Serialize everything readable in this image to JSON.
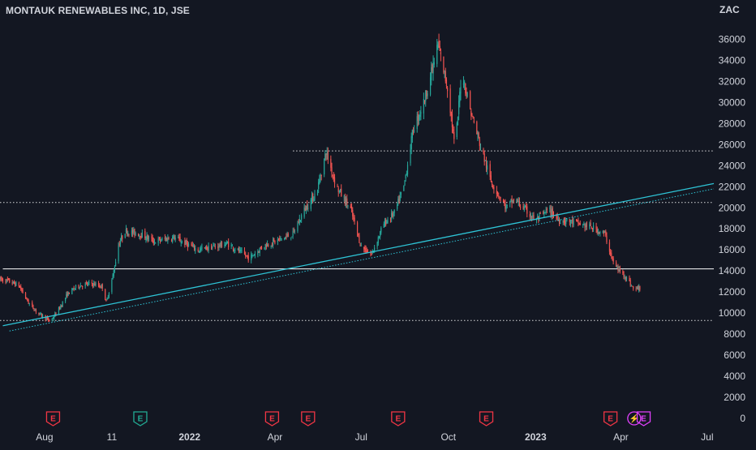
{
  "header": {
    "title": "MONTAUK RENEWABLES INC, 1D, JSE",
    "currency": "ZAC"
  },
  "colors": {
    "background": "#131722",
    "up_candle": "#26a69a",
    "down_candle": "#ef5350",
    "trendline": "#2ec4d6",
    "horizontal_line": "#ffffff",
    "earnings_red": "#f23645",
    "earnings_teal": "#22ab94",
    "dividend_magenta": "#e040fb",
    "axis_text": "#d1d4dc"
  },
  "chart_data": {
    "type": "candlestick",
    "ylim": [
      0,
      38000
    ],
    "y_ticks": [
      0,
      2000,
      4000,
      6000,
      8000,
      10000,
      12000,
      14000,
      16000,
      18000,
      20000,
      22000,
      24000,
      26000,
      28000,
      30000,
      32000,
      34000,
      36000,
      38000
    ],
    "y_tick_labels": [
      "0",
      "2000",
      "4000",
      "6000",
      "8000",
      "10000",
      "12000",
      "14000",
      "16000",
      "18000",
      "20000",
      "22000",
      "24000",
      "26000",
      "28000",
      "30000",
      "32000",
      "34000",
      "36000",
      "38000"
    ],
    "x_range": [
      "2021-06-15",
      "2023-07-08"
    ],
    "x_ticks": [
      {
        "label": "Aug",
        "date": "2021-08-01",
        "bold": false
      },
      {
        "label": "11",
        "date": "2021-10-11",
        "bold": false
      },
      {
        "label": "2022",
        "date": "2022-01-01",
        "bold": true
      },
      {
        "label": "Apr",
        "date": "2022-04-01",
        "bold": false
      },
      {
        "label": "Jul",
        "date": "2022-07-01",
        "bold": false
      },
      {
        "label": "Oct",
        "date": "2022-10-01",
        "bold": false
      },
      {
        "label": "2023",
        "date": "2023-01-01",
        "bold": true
      },
      {
        "label": "Apr",
        "date": "2023-04-01",
        "bold": false
      },
      {
        "label": "Jul",
        "date": "2023-07-01",
        "bold": false
      }
    ],
    "price_path": [
      [
        "2021-06-15",
        13200
      ],
      [
        "2021-06-25",
        13000
      ],
      [
        "2021-07-05",
        12600
      ],
      [
        "2021-07-15",
        11000
      ],
      [
        "2021-07-25",
        10000
      ],
      [
        "2021-08-01",
        9600
      ],
      [
        "2021-08-07",
        9200
      ],
      [
        "2021-08-15",
        10200
      ],
      [
        "2021-08-25",
        11800
      ],
      [
        "2021-09-05",
        12600
      ],
      [
        "2021-09-20",
        12800
      ],
      [
        "2021-10-01",
        12500
      ],
      [
        "2021-10-05",
        11000
      ],
      [
        "2021-10-12",
        13500
      ],
      [
        "2021-10-18",
        16500
      ],
      [
        "2021-10-25",
        17800
      ],
      [
        "2021-11-10",
        17500
      ],
      [
        "2021-11-25",
        16800
      ],
      [
        "2021-12-15",
        17200
      ],
      [
        "2022-01-10",
        16000
      ],
      [
        "2022-02-10",
        16600
      ],
      [
        "2022-03-05",
        15200
      ],
      [
        "2022-03-20",
        16400
      ],
      [
        "2022-04-01",
        16800
      ],
      [
        "2022-04-20",
        17500
      ],
      [
        "2022-05-02",
        19800
      ],
      [
        "2022-05-15",
        21500
      ],
      [
        "2022-05-25",
        25300
      ],
      [
        "2022-06-05",
        22000
      ],
      [
        "2022-06-20",
        19800
      ],
      [
        "2022-07-01",
        16300
      ],
      [
        "2022-07-12",
        15600
      ],
      [
        "2022-07-25",
        18500
      ],
      [
        "2022-08-05",
        19500
      ],
      [
        "2022-08-15",
        22000
      ],
      [
        "2022-08-25",
        27500
      ],
      [
        "2022-09-05",
        30000
      ],
      [
        "2022-09-15",
        33500
      ],
      [
        "2022-09-20",
        35500
      ],
      [
        "2022-10-01",
        31000
      ],
      [
        "2022-10-08",
        25500
      ],
      [
        "2022-10-15",
        33000
      ],
      [
        "2022-10-25",
        29000
      ],
      [
        "2022-11-05",
        25500
      ],
      [
        "2022-11-15",
        22500
      ],
      [
        "2022-12-01",
        20000
      ],
      [
        "2022-12-10",
        20800
      ],
      [
        "2023-01-01",
        18800
      ],
      [
        "2023-01-15",
        19800
      ],
      [
        "2023-01-25",
        18900
      ],
      [
        "2023-02-15",
        18500
      ],
      [
        "2023-03-05",
        18000
      ],
      [
        "2023-03-15",
        17500
      ],
      [
        "2023-03-25",
        14500
      ],
      [
        "2023-04-05",
        13600
      ],
      [
        "2023-04-15",
        12200
      ],
      [
        "2023-04-23",
        12500
      ]
    ],
    "trendlines": [
      {
        "style": "solid",
        "from": [
          "2021-06-18",
          8800
        ],
        "to": [
          "2023-07-08",
          22300
        ]
      },
      {
        "style": "dotted",
        "from": [
          "2021-06-25",
          8300
        ],
        "to": [
          "2023-07-08",
          21800
        ]
      }
    ],
    "horizontal_lines": [
      {
        "style": "solid",
        "price": 14200,
        "from": "2021-06-18"
      },
      {
        "style": "dotted",
        "price": 20500,
        "from": "2021-06-15"
      },
      {
        "style": "dotted",
        "price": 25400,
        "from": "2022-04-20"
      },
      {
        "style": "dotted",
        "price": 9300,
        "from": "2021-06-15"
      }
    ],
    "events": [
      {
        "date": "2021-08-10",
        "glyph": "E",
        "kind": "earnings",
        "color": "red"
      },
      {
        "date": "2021-11-10",
        "glyph": "E",
        "kind": "earnings",
        "color": "teal"
      },
      {
        "date": "2022-03-29",
        "glyph": "E",
        "kind": "earnings",
        "color": "red"
      },
      {
        "date": "2022-05-06",
        "glyph": "E",
        "kind": "earnings",
        "color": "red"
      },
      {
        "date": "2022-08-09",
        "glyph": "E",
        "kind": "earnings",
        "color": "red"
      },
      {
        "date": "2022-11-10",
        "glyph": "E",
        "kind": "earnings",
        "color": "red"
      },
      {
        "date": "2023-03-21",
        "glyph": "E",
        "kind": "earnings",
        "color": "red"
      },
      {
        "date": "2023-04-15",
        "glyph": "⚡",
        "kind": "split",
        "color": "magenta"
      },
      {
        "date": "2023-04-25",
        "glyph": "E",
        "kind": "earnings",
        "color": "magenta"
      }
    ]
  }
}
